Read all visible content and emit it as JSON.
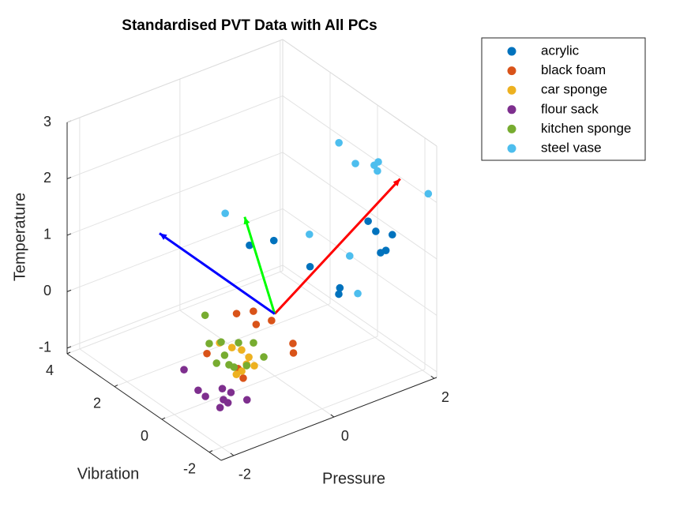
{
  "chart_data": {
    "type": "scatter3d",
    "title": "Standardised PVT Data with All PCs",
    "xlabel": "Pressure",
    "ylabel": "Vibration",
    "zlabel": "Temperature",
    "xlim": [
      -2.25,
      2.05
    ],
    "ylim": [
      -2.5,
      4
    ],
    "zlim": [
      -1.1,
      3
    ],
    "xticks": [
      -2,
      0,
      2
    ],
    "yticks": [
      -2,
      0,
      2,
      4
    ],
    "zticks": [
      -1,
      0,
      1,
      2,
      3
    ],
    "grid": true,
    "legend_position": "outside-top-right",
    "series": [
      {
        "name": "acrylic",
        "color": "#0072BD",
        "x": [
          0.32,
          0.72,
          0.7,
          0.69,
          0.56,
          1.66,
          1.78,
          1.93,
          1.55,
          1.66
        ],
        "y": [
          1.74,
          1.56,
          -0.01,
          -1.29,
          -1.52,
          -0.43,
          -0.5,
          -0.88,
          -1.19,
          -1.18
        ],
        "z": [
          0.6,
          0.6,
          0.6,
          0.6,
          0.6,
          1.2,
          1.0,
          1.0,
          0.9,
          0.9
        ]
      },
      {
        "name": "black foam",
        "color": "#D95319",
        "x": [
          -0.17,
          0.09,
          -0.12,
          0.15,
          -1.29,
          -1.17,
          -1.28,
          0.0,
          -0.17
        ],
        "y": [
          1.25,
          1.09,
          0.53,
          0.45,
          0.13,
          -0.93,
          -1.38,
          -0.77,
          -1.15
        ],
        "z": [
          -0.3,
          -0.3,
          -0.3,
          -0.3,
          -0.3,
          -0.3,
          -0.3,
          -0.3,
          -0.3
        ]
      },
      {
        "name": "car sponge",
        "color": "#EDB120",
        "x": [
          -0.72,
          -0.65,
          -0.57,
          -0.61,
          -0.7,
          -0.77,
          -1.09,
          -0.96
        ],
        "y": [
          0.8,
          0.43,
          0.19,
          -0.2,
          -0.62,
          -0.44,
          -0.69,
          -0.64
        ],
        "z": [
          -0.5,
          -0.5,
          -0.5,
          -0.5,
          -0.5,
          -0.5,
          -0.5,
          -0.5
        ]
      },
      {
        "name": "flour sack",
        "color": "#7E2F8E",
        "x": [
          -1.36,
          -1.56,
          -1.58,
          -1.22,
          -1.18,
          -1.41,
          -1.41,
          -1.6,
          -1.11
        ],
        "y": [
          0.95,
          -0.07,
          -0.42,
          -0.37,
          -0.65,
          -0.82,
          -1.01,
          -1.08,
          -1.18
        ],
        "z": [
          -0.8,
          -0.8,
          -0.8,
          -0.8,
          -0.8,
          -0.8,
          -0.8,
          -0.8,
          -0.8
        ]
      },
      {
        "name": "kitchen sponge",
        "color": "#77AC30",
        "x": [
          -0.5,
          -0.97,
          -0.79,
          -0.58,
          -0.39,
          -0.52,
          -0.99,
          -1.24,
          -1.11,
          -1.09,
          -0.9
        ],
        "y": [
          1.88,
          0.71,
          0.59,
          0.3,
          0.07,
          -0.64,
          0.02,
          -0.17,
          -0.42,
          -0.59,
          -0.72
        ],
        "z": [
          -0.4,
          -0.4,
          -0.4,
          -0.4,
          -0.4,
          -0.4,
          -0.4,
          -0.4,
          -0.4,
          -0.4,
          -0.4
        ]
      },
      {
        "name": "steel vase",
        "color": "#4DBEEE",
        "x": [
          -0.34,
          0.56,
          1.38,
          1.52,
          1.73,
          1.74,
          1.77,
          2.0,
          0.99,
          0.92
        ],
        "y": [
          1.37,
          -0.28,
          0.21,
          -0.19,
          -0.54,
          -0.69,
          -0.59,
          -2.25,
          -1.07,
          -1.56
        ],
        "z": [
          1.5,
          1.3,
          2.5,
          2.2,
          2.2,
          2.3,
          2.1,
          2.1,
          1.0,
          0.5
        ]
      }
    ],
    "pc_vectors": [
      {
        "color": "#ff0000",
        "vector": [
          2.03,
          -1,
          1.99
        ]
      },
      {
        "color": "#00ff00",
        "vector": [
          0.2,
          1.69,
          1.16
        ]
      },
      {
        "color": "#0000ff",
        "vector": [
          -0.8,
          3.17,
          0.78
        ]
      }
    ]
  }
}
